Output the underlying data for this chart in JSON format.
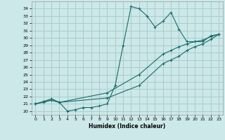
{
  "title": "",
  "xlabel": "Humidex (Indice chaleur)",
  "ylabel": "",
  "bg_color": "#cce8e8",
  "grid_color": "#aacccc",
  "line_color": "#1a6b6b",
  "xlim": [
    -0.5,
    23.5
  ],
  "ylim": [
    19.5,
    35.0
  ],
  "xticks": [
    0,
    1,
    2,
    3,
    4,
    5,
    6,
    7,
    8,
    9,
    10,
    11,
    12,
    13,
    14,
    15,
    16,
    17,
    18,
    19,
    20,
    21,
    22,
    23
  ],
  "yticks": [
    20,
    21,
    22,
    23,
    24,
    25,
    26,
    27,
    28,
    29,
    30,
    31,
    32,
    33,
    34
  ],
  "line1_x": [
    0,
    1,
    2,
    3,
    4,
    5,
    6,
    7,
    8,
    9,
    10,
    11,
    12,
    13,
    14,
    15,
    16,
    17,
    18,
    19,
    20,
    21,
    22,
    23
  ],
  "line1_y": [
    21.0,
    21.3,
    21.5,
    21.2,
    20.0,
    20.2,
    20.5,
    20.5,
    20.7,
    21.0,
    23.5,
    29.0,
    34.3,
    34.0,
    33.0,
    31.5,
    32.3,
    33.5,
    31.2,
    29.5,
    29.5,
    29.5,
    30.3,
    30.5
  ],
  "line2_x": [
    0,
    1,
    2,
    3,
    9,
    13,
    16,
    17,
    18,
    19,
    20,
    21,
    22,
    23
  ],
  "line2_y": [
    21.0,
    21.3,
    21.7,
    21.2,
    22.5,
    25.0,
    27.8,
    28.3,
    28.8,
    29.2,
    29.5,
    29.7,
    30.2,
    30.5
  ],
  "line3_x": [
    0,
    1,
    2,
    3,
    9,
    13,
    16,
    17,
    18,
    19,
    20,
    21,
    22,
    23
  ],
  "line3_y": [
    21.0,
    21.2,
    21.5,
    21.2,
    21.8,
    23.5,
    26.5,
    27.0,
    27.5,
    28.3,
    28.8,
    29.2,
    29.8,
    30.5
  ]
}
